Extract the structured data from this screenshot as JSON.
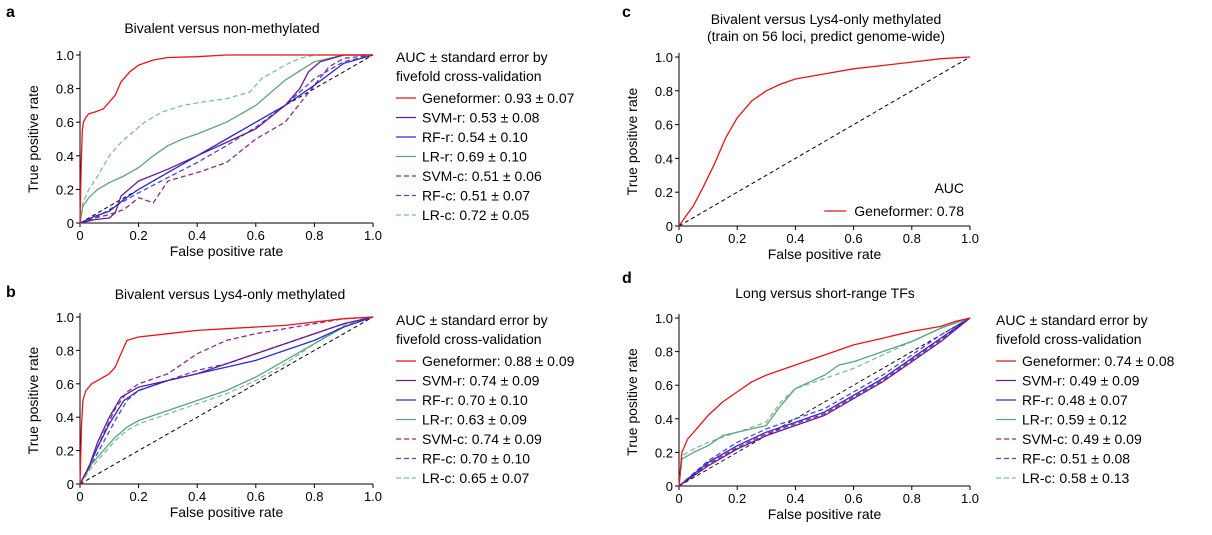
{
  "chart_data": [
    {
      "panel": "a",
      "type": "line",
      "title": "Bivalent versus non-methylated",
      "subtitle": "",
      "xlabel": "False positive rate",
      "ylabel": "True positive rate",
      "xlim": [
        0,
        1
      ],
      "ylim": [
        0,
        1
      ],
      "xticks": [
        "0",
        "0.2",
        "0.4",
        "0.6",
        "0.8",
        "1.0"
      ],
      "yticks": [
        "0",
        "0.2",
        "0.4",
        "0.6",
        "0.8",
        "1.0"
      ],
      "legend_title": [
        "AUC ± standard error by",
        "fivefold cross-validation"
      ],
      "legend_position": "right",
      "diagonal": true,
      "series": [
        {
          "name": "Geneformer: 0.93 ± 0.07",
          "color": "#e8141b",
          "dash": "solid",
          "x": [
            0,
            0.004,
            0.008,
            0.012,
            0.02,
            0.03,
            0.05,
            0.08,
            0.1,
            0.12,
            0.14,
            0.17,
            0.2,
            0.25,
            0.3,
            0.4,
            0.5,
            0.7,
            1.0
          ],
          "y": [
            0,
            0.35,
            0.55,
            0.6,
            0.63,
            0.65,
            0.66,
            0.68,
            0.72,
            0.76,
            0.84,
            0.9,
            0.94,
            0.97,
            0.985,
            0.99,
            1.0,
            1.0,
            1.0
          ]
        },
        {
          "name": "SVM-r: 0.53 ± 0.08",
          "color": "#6a1b8f",
          "dash": "solid",
          "x": [
            0,
            0.05,
            0.1,
            0.12,
            0.14,
            0.2,
            0.3,
            0.4,
            0.5,
            0.6,
            0.7,
            0.75,
            0.78,
            0.82,
            0.9,
            1.0
          ],
          "y": [
            0,
            0.02,
            0.03,
            0.06,
            0.16,
            0.25,
            0.32,
            0.4,
            0.48,
            0.56,
            0.7,
            0.8,
            0.9,
            0.96,
            1.0,
            1.0
          ]
        },
        {
          "name": "RF-r: 0.54 ± 0.10",
          "color": "#2b2bd9",
          "dash": "solid",
          "x": [
            0,
            0.05,
            0.1,
            0.15,
            0.2,
            0.3,
            0.4,
            0.5,
            0.6,
            0.7,
            0.8,
            0.9,
            1.0
          ],
          "y": [
            0,
            0.04,
            0.07,
            0.14,
            0.2,
            0.3,
            0.4,
            0.5,
            0.6,
            0.7,
            0.82,
            0.95,
            1.0
          ]
        },
        {
          "name": "LR-r: 0.69 ± 0.10",
          "color": "#5aa67a",
          "dash": "solid",
          "x": [
            0,
            0.01,
            0.03,
            0.06,
            0.1,
            0.15,
            0.2,
            0.25,
            0.3,
            0.35,
            0.4,
            0.5,
            0.6,
            0.7,
            0.8,
            0.9,
            1.0
          ],
          "y": [
            0,
            0.1,
            0.15,
            0.2,
            0.24,
            0.28,
            0.33,
            0.4,
            0.46,
            0.5,
            0.53,
            0.6,
            0.7,
            0.85,
            0.96,
            1.0,
            1.0
          ]
        },
        {
          "name": "SVM-c: 0.51 ± 0.06",
          "color": "#8a2b8f",
          "dash": "dashed",
          "x": [
            0,
            0.05,
            0.1,
            0.15,
            0.2,
            0.25,
            0.3,
            0.4,
            0.5,
            0.6,
            0.7,
            0.8,
            0.85,
            0.9,
            1.0
          ],
          "y": [
            0,
            0.03,
            0.05,
            0.08,
            0.15,
            0.12,
            0.25,
            0.3,
            0.36,
            0.5,
            0.6,
            0.82,
            0.93,
            0.98,
            1.0
          ]
        },
        {
          "name": "RF-c: 0.51 ± 0.07",
          "color": "#4a4ad0",
          "dash": "dashed",
          "x": [
            0,
            0.05,
            0.1,
            0.2,
            0.3,
            0.4,
            0.5,
            0.6,
            0.7,
            0.8,
            0.9,
            1.0
          ],
          "y": [
            0,
            0.03,
            0.08,
            0.18,
            0.27,
            0.36,
            0.46,
            0.57,
            0.7,
            0.86,
            0.96,
            1.0
          ]
        },
        {
          "name": "LR-c: 0.72 ± 0.05",
          "color": "#7fbf9a",
          "dash": "dashed",
          "x": [
            0,
            0.01,
            0.03,
            0.06,
            0.1,
            0.14,
            0.18,
            0.22,
            0.28,
            0.35,
            0.42,
            0.5,
            0.58,
            0.62,
            0.66,
            0.7,
            0.75,
            0.8,
            0.9,
            1.0
          ],
          "y": [
            0,
            0.12,
            0.2,
            0.28,
            0.4,
            0.48,
            0.54,
            0.6,
            0.66,
            0.7,
            0.72,
            0.74,
            0.78,
            0.86,
            0.9,
            0.94,
            0.98,
            1.0,
            1.0,
            1.0
          ]
        }
      ]
    },
    {
      "panel": "b",
      "type": "line",
      "title": "Bivalent versus Lys4-only methylated",
      "subtitle": "",
      "xlabel": "False positive rate",
      "ylabel": "True positive rate",
      "xlim": [
        0,
        1
      ],
      "ylim": [
        0,
        1
      ],
      "xticks": [
        "0",
        "0.2",
        "0.4",
        "0.6",
        "0.8",
        "1.0"
      ],
      "yticks": [
        "0",
        "0.2",
        "0.4",
        "0.6",
        "0.8",
        "1.0"
      ],
      "legend_title": [
        "AUC ± standard error by",
        "fivefold cross-validation"
      ],
      "legend_position": "right",
      "diagonal": true,
      "series": [
        {
          "name": "Geneformer: 0.88 ± 0.09",
          "color": "#e8141b",
          "dash": "solid",
          "x": [
            0,
            0.005,
            0.01,
            0.02,
            0.04,
            0.07,
            0.1,
            0.12,
            0.14,
            0.16,
            0.2,
            0.3,
            0.4,
            0.5,
            0.6,
            0.7,
            0.8,
            0.9,
            1.0
          ],
          "y": [
            0,
            0.35,
            0.5,
            0.56,
            0.6,
            0.63,
            0.66,
            0.7,
            0.78,
            0.86,
            0.88,
            0.9,
            0.92,
            0.93,
            0.94,
            0.95,
            0.97,
            0.99,
            1.0
          ]
        },
        {
          "name": "SVM-r: 0.74 ± 0.09",
          "color": "#6a1b8f",
          "dash": "solid",
          "x": [
            0,
            0.03,
            0.06,
            0.1,
            0.14,
            0.2,
            0.3,
            0.4,
            0.5,
            0.6,
            0.7,
            0.8,
            0.9,
            1.0
          ],
          "y": [
            0,
            0.1,
            0.25,
            0.4,
            0.52,
            0.58,
            0.62,
            0.66,
            0.72,
            0.78,
            0.84,
            0.9,
            0.96,
            1.0
          ]
        },
        {
          "name": "RF-r: 0.70 ± 0.10",
          "color": "#2b2bd9",
          "dash": "solid",
          "x": [
            0,
            0.03,
            0.06,
            0.1,
            0.15,
            0.2,
            0.3,
            0.4,
            0.5,
            0.6,
            0.7,
            0.8,
            0.9,
            1.0
          ],
          "y": [
            0,
            0.1,
            0.22,
            0.36,
            0.5,
            0.56,
            0.62,
            0.66,
            0.7,
            0.74,
            0.8,
            0.86,
            0.94,
            1.0
          ]
        },
        {
          "name": "LR-r: 0.63 ± 0.09",
          "color": "#5aa67a",
          "dash": "solid",
          "x": [
            0,
            0.04,
            0.08,
            0.12,
            0.16,
            0.2,
            0.3,
            0.4,
            0.5,
            0.6,
            0.7,
            0.8,
            0.9,
            1.0
          ],
          "y": [
            0,
            0.12,
            0.2,
            0.28,
            0.34,
            0.38,
            0.44,
            0.5,
            0.56,
            0.64,
            0.74,
            0.84,
            0.94,
            1.0
          ]
        },
        {
          "name": "SVM-c: 0.74 ± 0.09",
          "color": "#8a2b8f",
          "dash": "dashed",
          "x": [
            0,
            0.04,
            0.08,
            0.12,
            0.16,
            0.2,
            0.3,
            0.4,
            0.5,
            0.6,
            0.7,
            0.8,
            0.9,
            1.0
          ],
          "y": [
            0,
            0.14,
            0.3,
            0.45,
            0.55,
            0.6,
            0.66,
            0.78,
            0.86,
            0.9,
            0.93,
            0.96,
            0.99,
            1.0
          ]
        },
        {
          "name": "RF-c: 0.70 ± 0.10",
          "color": "#4a4ad0",
          "dash": "dashed",
          "x": [
            0,
            0.04,
            0.08,
            0.12,
            0.16,
            0.2,
            0.3,
            0.4,
            0.5,
            0.6,
            0.7,
            0.8,
            0.9,
            1.0
          ],
          "y": [
            0,
            0.12,
            0.25,
            0.38,
            0.5,
            0.56,
            0.62,
            0.68,
            0.72,
            0.78,
            0.84,
            0.9,
            0.96,
            1.0
          ]
        },
        {
          "name": "LR-c: 0.65 ± 0.07",
          "color": "#7fbf9a",
          "dash": "dashed",
          "x": [
            0,
            0.04,
            0.08,
            0.12,
            0.16,
            0.2,
            0.3,
            0.4,
            0.5,
            0.6,
            0.7,
            0.8,
            0.9,
            1.0
          ],
          "y": [
            0,
            0.1,
            0.18,
            0.26,
            0.32,
            0.36,
            0.42,
            0.48,
            0.54,
            0.62,
            0.72,
            0.84,
            0.95,
            1.0
          ]
        }
      ]
    },
    {
      "panel": "c",
      "type": "line",
      "title": "Bivalent versus Lys4-only methylated",
      "subtitle": "(train on 56 loci, predict genome-wide)",
      "xlabel": "False positive rate",
      "ylabel": "True positive rate",
      "xlim": [
        0,
        1
      ],
      "ylim": [
        0,
        1
      ],
      "xticks": [
        "0",
        "0.2",
        "0.4",
        "0.6",
        "0.8",
        "1.0"
      ],
      "yticks": [
        "0",
        "0.2",
        "0.4",
        "0.6",
        "0.8",
        "1.0"
      ],
      "legend_title": [
        "AUC"
      ],
      "legend_position": "bottom-right",
      "diagonal": true,
      "series": [
        {
          "name": "Geneformer: 0.78",
          "color": "#e8141b",
          "dash": "solid",
          "x": [
            0,
            0.02,
            0.05,
            0.08,
            0.12,
            0.16,
            0.2,
            0.25,
            0.3,
            0.35,
            0.4,
            0.5,
            0.6,
            0.7,
            0.8,
            0.9,
            1.0
          ],
          "y": [
            0,
            0.05,
            0.12,
            0.22,
            0.36,
            0.52,
            0.64,
            0.74,
            0.8,
            0.84,
            0.87,
            0.9,
            0.93,
            0.95,
            0.97,
            0.99,
            1.0
          ]
        }
      ]
    },
    {
      "panel": "d",
      "type": "line",
      "title": "Long versus short-range TFs",
      "subtitle": "",
      "xlabel": "False positive rate",
      "ylabel": "True positive rate",
      "xlim": [
        0,
        1
      ],
      "ylim": [
        0,
        1
      ],
      "xticks": [
        "0",
        "0.2",
        "0.4",
        "0.6",
        "0.8",
        "1.0"
      ],
      "yticks": [
        "0",
        "0.2",
        "0.4",
        "0.6",
        "0.8",
        "1.0"
      ],
      "legend_title": [
        "AUC ± standard error by",
        "fivefold cross-validation"
      ],
      "legend_position": "right",
      "diagonal": true,
      "series": [
        {
          "name": "Geneformer: 0.74 ± 0.08",
          "color": "#e8141b",
          "dash": "solid",
          "x": [
            0,
            0.01,
            0.03,
            0.06,
            0.1,
            0.15,
            0.2,
            0.25,
            0.3,
            0.4,
            0.5,
            0.6,
            0.7,
            0.8,
            0.9,
            0.95,
            1.0
          ],
          "y": [
            0,
            0.2,
            0.28,
            0.34,
            0.42,
            0.5,
            0.56,
            0.62,
            0.66,
            0.72,
            0.78,
            0.84,
            0.88,
            0.92,
            0.95,
            0.98,
            1.0
          ]
        },
        {
          "name": "SVM-r: 0.49 ± 0.09",
          "color": "#6a1b8f",
          "dash": "solid",
          "x": [
            0,
            0.1,
            0.2,
            0.3,
            0.4,
            0.5,
            0.6,
            0.7,
            0.8,
            0.9,
            1.0
          ],
          "y": [
            0,
            0.12,
            0.22,
            0.3,
            0.36,
            0.42,
            0.52,
            0.62,
            0.74,
            0.86,
            1.0
          ]
        },
        {
          "name": "RF-r: 0.48 ± 0.07",
          "color": "#2b2bd9",
          "dash": "solid",
          "x": [
            0,
            0.1,
            0.2,
            0.3,
            0.4,
            0.5,
            0.6,
            0.7,
            0.8,
            0.9,
            1.0
          ],
          "y": [
            0,
            0.14,
            0.24,
            0.32,
            0.38,
            0.44,
            0.54,
            0.64,
            0.76,
            0.88,
            1.0
          ]
        },
        {
          "name": "LR-r: 0.59 ± 0.12",
          "color": "#5aa67a",
          "dash": "solid",
          "x": [
            0,
            0.01,
            0.05,
            0.1,
            0.15,
            0.2,
            0.3,
            0.35,
            0.4,
            0.45,
            0.5,
            0.55,
            0.6,
            0.7,
            0.8,
            0.9,
            1.0
          ],
          "y": [
            0,
            0.16,
            0.2,
            0.24,
            0.3,
            0.32,
            0.36,
            0.48,
            0.58,
            0.62,
            0.66,
            0.72,
            0.74,
            0.8,
            0.86,
            0.94,
            1.0
          ]
        },
        {
          "name": "SVM-c: 0.49 ± 0.09",
          "color": "#8a2b8f",
          "dash": "dashed",
          "x": [
            0,
            0.1,
            0.2,
            0.3,
            0.4,
            0.5,
            0.6,
            0.7,
            0.8,
            0.9,
            1.0
          ],
          "y": [
            0,
            0.13,
            0.23,
            0.31,
            0.37,
            0.43,
            0.53,
            0.63,
            0.75,
            0.87,
            1.0
          ]
        },
        {
          "name": "RF-c: 0.51 ± 0.08",
          "color": "#4a4ad0",
          "dash": "dashed",
          "x": [
            0,
            0.1,
            0.2,
            0.3,
            0.4,
            0.5,
            0.6,
            0.7,
            0.8,
            0.9,
            1.0
          ],
          "y": [
            0,
            0.15,
            0.26,
            0.34,
            0.4,
            0.46,
            0.56,
            0.66,
            0.78,
            0.9,
            1.0
          ]
        },
        {
          "name": "LR-c: 0.58 ± 0.13",
          "color": "#7fbf9a",
          "dash": "dashed",
          "x": [
            0,
            0.01,
            0.05,
            0.1,
            0.2,
            0.3,
            0.35,
            0.4,
            0.5,
            0.6,
            0.7,
            0.8,
            0.9,
            1.0
          ],
          "y": [
            0,
            0.18,
            0.22,
            0.26,
            0.32,
            0.38,
            0.5,
            0.58,
            0.64,
            0.7,
            0.78,
            0.86,
            0.94,
            1.0
          ]
        }
      ]
    }
  ]
}
